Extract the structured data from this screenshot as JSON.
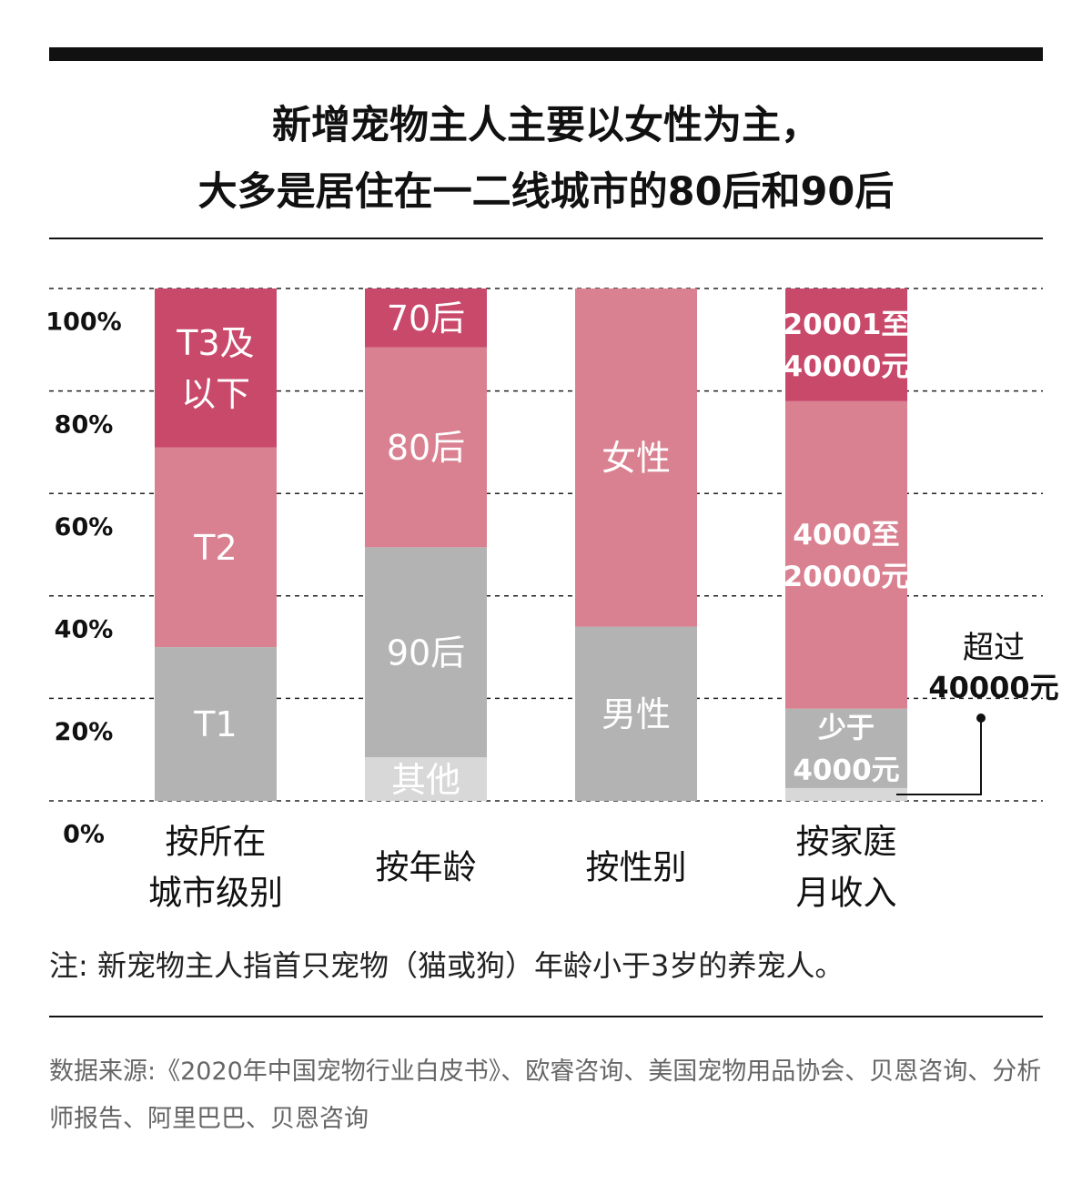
{
  "title": {
    "line1": "新增宠物主人主要以女性为主，",
    "line2": "大多是居住在一二线城市的80后和90后"
  },
  "colors": {
    "dark_pink": "#c9496b",
    "pink": "#d98190",
    "gray": "#b3b3b3",
    "light_gray": "#d8d8d8"
  },
  "chart_data": {
    "type": "bar",
    "stacked": true,
    "ylim": [
      0,
      100
    ],
    "yticks": [
      "0%",
      "20%",
      "40%",
      "60%",
      "80%",
      "100%"
    ],
    "grid": true,
    "bars": [
      {
        "category": [
          "按所在",
          "城市级别"
        ],
        "segments": [
          {
            "label": "T1",
            "value": 30,
            "color": "gray"
          },
          {
            "label": "T2",
            "value": 39,
            "color": "pink"
          },
          {
            "label": "T3及以下",
            "label_lines": [
              "T3及",
              "以下"
            ],
            "value": 31,
            "color": "dark_pink"
          }
        ]
      },
      {
        "category": [
          "按年龄"
        ],
        "segments": [
          {
            "label": "其他",
            "value": 8.5,
            "color": "light_gray"
          },
          {
            "label": "90后",
            "value": 41,
            "color": "gray"
          },
          {
            "label": "80后",
            "value": 39,
            "color": "pink"
          },
          {
            "label": "70后",
            "value": 11.5,
            "color": "dark_pink"
          }
        ]
      },
      {
        "category": [
          "按性别"
        ],
        "segments": [
          {
            "label": "男性",
            "value": 34,
            "color": "gray"
          },
          {
            "label": "女性",
            "value": 66,
            "color": "pink"
          }
        ]
      },
      {
        "category": [
          "按家庭",
          "月收入"
        ],
        "segments": [
          {
            "label": "超过40000元",
            "value": 2.5,
            "color": "light_gray"
          },
          {
            "label": "少于4000元",
            "label_lines": [
              "少于",
              "4000元"
            ],
            "value": 15.5,
            "color": "gray"
          },
          {
            "label": "4000至20000元",
            "label_lines": [
              "4000至",
              "20000元"
            ],
            "value": 60,
            "color": "pink"
          },
          {
            "label": "20001至40000元",
            "label_lines": [
              "20001至",
              "40000元"
            ],
            "value": 22,
            "color": "dark_pink"
          }
        ]
      }
    ],
    "annotation": {
      "lines": [
        "超过",
        "40000元"
      ]
    }
  },
  "note": "注: 新宠物主人指首只宠物（猫或狗）年龄小于3岁的养宠人。",
  "source": "数据来源:《2020年中国宠物行业白皮书》、欧睿咨询、美国宠物用品协会、贝恩咨询、分析师报告、阿里巴巴、贝恩咨询"
}
